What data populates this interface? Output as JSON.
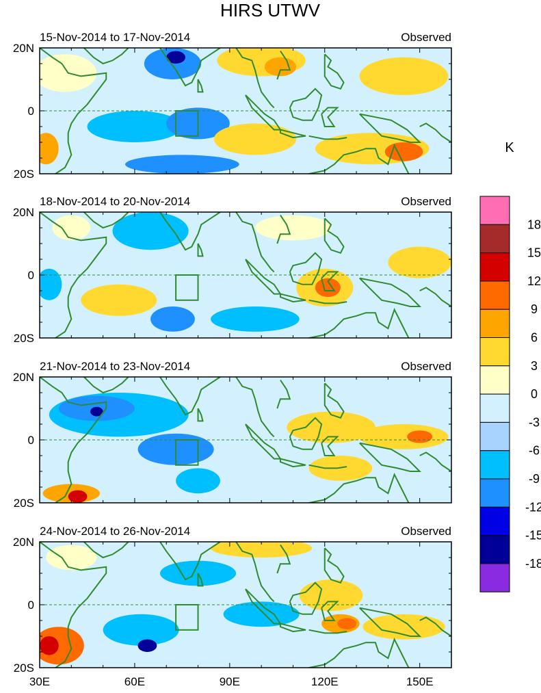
{
  "chart_data": {
    "type": "heatmap",
    "title": "HIRS UTWV",
    "units_label": "K",
    "region_label": "Observed",
    "x_tick_labels": [
      "30E",
      "60E",
      "90E",
      "120E",
      "150E"
    ],
    "x_ticks": [
      30,
      60,
      90,
      120,
      150
    ],
    "xlim": [
      30,
      160
    ],
    "y_tick_labels": [
      "20N",
      "0",
      "20S"
    ],
    "y_ticks": [
      20,
      0,
      -20
    ],
    "ylim": [
      -20,
      20
    ],
    "colorbar_labels": [
      "18",
      "15",
      "12",
      "9",
      "6",
      "3",
      "0",
      "-3",
      "-6",
      "-9",
      "-12",
      "-15",
      "-18"
    ],
    "colorbar_colors": [
      "#ff6eb4",
      "#a52a2a",
      "#d40000",
      "#ff6a00",
      "#ffa500",
      "#ffd92f",
      "#ffffc8",
      "#d3f0ff",
      "#a8d2ff",
      "#00bfff",
      "#1e90ff",
      "#0000e6",
      "#000099",
      "#8a2be2"
    ],
    "box_region": {
      "lon": [
        73,
        80
      ],
      "lat": [
        -8,
        0
      ]
    },
    "panels": [
      {
        "period": "15-Nov-2014 to 17-Nov-2014",
        "features": [
          {
            "lon": 38,
            "lat": 12,
            "rx": 10,
            "ry": 6,
            "value": 3
          },
          {
            "lon": 72,
            "lat": 15,
            "rx": 9,
            "ry": 5,
            "value": -9
          },
          {
            "lon": 73,
            "lat": 17,
            "rx": 3,
            "ry": 2,
            "value": -15
          },
          {
            "lon": 60,
            "lat": -5,
            "rx": 15,
            "ry": 5,
            "value": -6
          },
          {
            "lon": 80,
            "lat": -4,
            "rx": 10,
            "ry": 5,
            "value": -9
          },
          {
            "lon": 100,
            "lat": 16,
            "rx": 14,
            "ry": 5,
            "value": 6
          },
          {
            "lon": 106,
            "lat": 14,
            "rx": 5,
            "ry": 3,
            "value": 9
          },
          {
            "lon": 98,
            "lat": -9,
            "rx": 13,
            "ry": 5,
            "value": 6
          },
          {
            "lon": 145,
            "lat": 11,
            "rx": 14,
            "ry": 6,
            "value": 6
          },
          {
            "lon": 135,
            "lat": -12,
            "rx": 18,
            "ry": 5,
            "value": 6
          },
          {
            "lon": 145,
            "lat": -13,
            "rx": 6,
            "ry": 3,
            "value": 12
          },
          {
            "lon": 75,
            "lat": -17,
            "rx": 18,
            "ry": 3,
            "value": -9
          },
          {
            "lon": 32,
            "lat": -12,
            "rx": 4,
            "ry": 5,
            "value": 9
          }
        ]
      },
      {
        "period": "18-Nov-2014 to 20-Nov-2014",
        "features": [
          {
            "lon": 65,
            "lat": 14,
            "rx": 12,
            "ry": 6,
            "value": -6
          },
          {
            "lon": 55,
            "lat": -8,
            "rx": 12,
            "ry": 5,
            "value": 6
          },
          {
            "lon": 72,
            "lat": -14,
            "rx": 7,
            "ry": 4,
            "value": -9
          },
          {
            "lon": 98,
            "lat": -14,
            "rx": 14,
            "ry": 4,
            "value": -6
          },
          {
            "lon": 110,
            "lat": 15,
            "rx": 12,
            "ry": 4,
            "value": 3
          },
          {
            "lon": 120,
            "lat": -4,
            "rx": 9,
            "ry": 6,
            "value": 6
          },
          {
            "lon": 121,
            "lat": -4,
            "rx": 4,
            "ry": 3,
            "value": 12
          },
          {
            "lon": 150,
            "lat": 4,
            "rx": 10,
            "ry": 5,
            "value": 6
          },
          {
            "lon": 40,
            "lat": 15,
            "rx": 6,
            "ry": 4,
            "value": 3
          },
          {
            "lon": 33,
            "lat": -3,
            "rx": 4,
            "ry": 5,
            "value": -6
          }
        ]
      },
      {
        "period": "21-Nov-2014 to 23-Nov-2014",
        "features": [
          {
            "lon": 55,
            "lat": 8,
            "rx": 22,
            "ry": 7,
            "value": -6
          },
          {
            "lon": 48,
            "lat": 10,
            "rx": 12,
            "ry": 4,
            "value": -9
          },
          {
            "lon": 48,
            "lat": 9,
            "rx": 2,
            "ry": 1.5,
            "value": -15
          },
          {
            "lon": 73,
            "lat": -3,
            "rx": 12,
            "ry": 5,
            "value": -9
          },
          {
            "lon": 80,
            "lat": -13,
            "rx": 7,
            "ry": 4,
            "value": -6
          },
          {
            "lon": 122,
            "lat": 4,
            "rx": 14,
            "ry": 5,
            "value": 6
          },
          {
            "lon": 145,
            "lat": 1,
            "rx": 14,
            "ry": 4,
            "value": 6
          },
          {
            "lon": 150,
            "lat": 1,
            "rx": 4,
            "ry": 2,
            "value": 12
          },
          {
            "lon": 125,
            "lat": -9,
            "rx": 10,
            "ry": 4,
            "value": 6
          },
          {
            "lon": 40,
            "lat": -17,
            "rx": 9,
            "ry": 3,
            "value": 9
          },
          {
            "lon": 42,
            "lat": -18,
            "rx": 3,
            "ry": 2,
            "value": 15
          }
        ]
      },
      {
        "period": "24-Nov-2014 to 26-Nov-2014",
        "features": [
          {
            "lon": 62,
            "lat": -8,
            "rx": 12,
            "ry": 5,
            "value": -6
          },
          {
            "lon": 64,
            "lat": -13,
            "rx": 3,
            "ry": 2,
            "value": -15
          },
          {
            "lon": 80,
            "lat": 10,
            "rx": 12,
            "ry": 4,
            "value": -6
          },
          {
            "lon": 100,
            "lat": -3,
            "rx": 12,
            "ry": 4,
            "value": -6
          },
          {
            "lon": 122,
            "lat": 3,
            "rx": 10,
            "ry": 5,
            "value": 6
          },
          {
            "lon": 125,
            "lat": -6,
            "rx": 6,
            "ry": 3,
            "value": 9
          },
          {
            "lon": 127,
            "lat": -6,
            "rx": 3,
            "ry": 1.8,
            "value": 12
          },
          {
            "lon": 145,
            "lat": -7,
            "rx": 13,
            "ry": 4,
            "value": 6
          },
          {
            "lon": 100,
            "lat": 18,
            "rx": 16,
            "ry": 3,
            "value": 6
          },
          {
            "lon": 36,
            "lat": -13,
            "rx": 8,
            "ry": 6,
            "value": 12
          },
          {
            "lon": 33,
            "lat": -13,
            "rx": 3,
            "ry": 3,
            "value": 15
          },
          {
            "lon": 40,
            "lat": 15,
            "rx": 8,
            "ry": 4,
            "value": 3
          }
        ]
      }
    ]
  }
}
